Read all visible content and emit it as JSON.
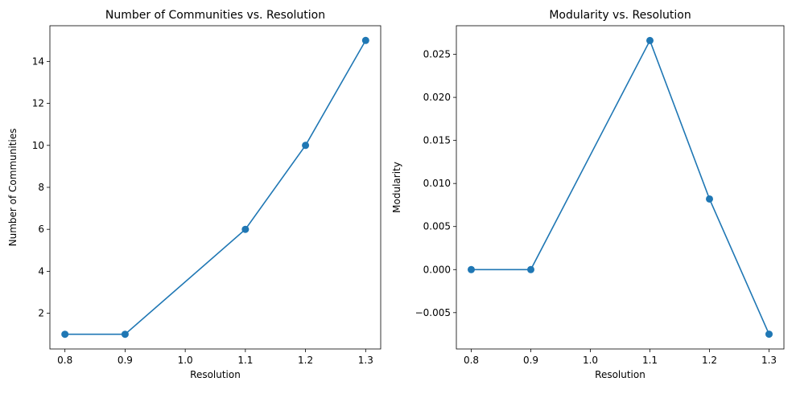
{
  "chart_data": [
    {
      "type": "line",
      "title": "Number of Communities vs. Resolution",
      "xlabel": "Resolution",
      "ylabel": "Number of Communities",
      "x": [
        0.8,
        0.9,
        1.1,
        1.2,
        1.3
      ],
      "series": [
        {
          "values": [
            1,
            1,
            6,
            10,
            15
          ],
          "color": "#1f77b4"
        }
      ],
      "xlim": [
        0.775,
        1.325
      ],
      "ylim": [
        0.3,
        15.7
      ],
      "xticks": [
        0.8,
        0.9,
        1.0,
        1.1,
        1.2,
        1.3
      ],
      "xtick_labels": [
        "0.8",
        "0.9",
        "1.0",
        "1.1",
        "1.2",
        "1.3"
      ],
      "yticks": [
        2,
        4,
        6,
        8,
        10,
        12,
        14
      ],
      "ytick_labels": [
        "2",
        "4",
        "6",
        "8",
        "10",
        "12",
        "14"
      ],
      "grid": false,
      "marker": "circle"
    },
    {
      "type": "line",
      "title": "Modularity vs. Resolution",
      "xlabel": "Resolution",
      "ylabel": "Modularity",
      "x": [
        0.8,
        0.9,
        1.1,
        1.2,
        1.3
      ],
      "series": [
        {
          "values": [
            0.0,
            0.0,
            0.0266,
            0.0082,
            -0.0075
          ],
          "color": "#1f77b4"
        }
      ],
      "xlim": [
        0.775,
        1.325
      ],
      "ylim": [
        -0.00922,
        0.02832
      ],
      "xticks": [
        0.8,
        0.9,
        1.0,
        1.1,
        1.2,
        1.3
      ],
      "xtick_labels": [
        "0.8",
        "0.9",
        "1.0",
        "1.1",
        "1.2",
        "1.3"
      ],
      "yticks": [
        -0.005,
        0.0,
        0.005,
        0.01,
        0.015,
        0.02,
        0.025
      ],
      "ytick_labels": [
        "−0.005",
        "0.000",
        "0.005",
        "0.010",
        "0.015",
        "0.020",
        "0.025"
      ],
      "grid": false,
      "marker": "circle"
    }
  ]
}
